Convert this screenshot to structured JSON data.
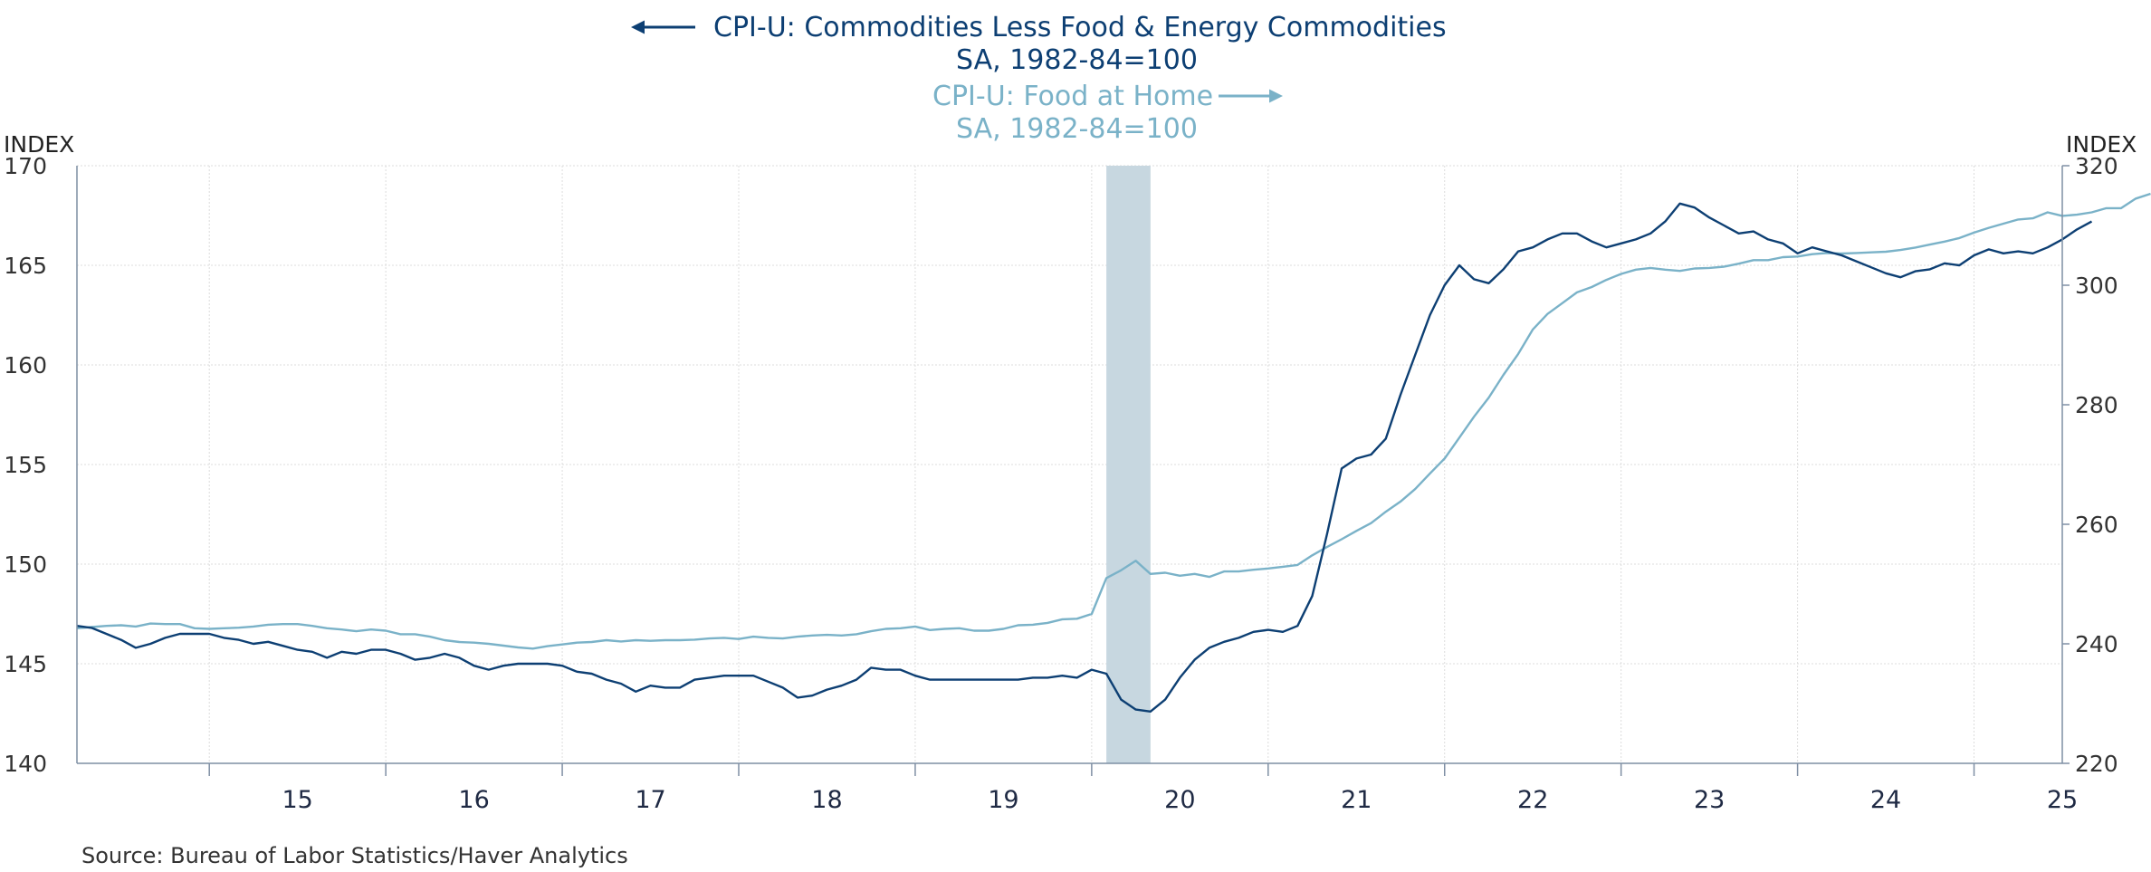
{
  "chart_data": {
    "type": "line",
    "series": [
      {
        "name": "CPI-U: Commodities Less Food & Energy Commodities",
        "subtitle": "SA, 1982-84=100",
        "axis": "left",
        "color": "#0d3f73",
        "start": "2014-04",
        "values": [
          146.9,
          146.8,
          146.5,
          146.2,
          145.8,
          146.0,
          146.3,
          146.5,
          146.5,
          146.5,
          146.3,
          146.2,
          146.0,
          146.1,
          145.9,
          145.7,
          145.6,
          145.3,
          145.6,
          145.5,
          145.7,
          145.7,
          145.5,
          145.2,
          145.3,
          145.5,
          145.3,
          144.9,
          144.7,
          144.9,
          145.0,
          145.0,
          145.0,
          144.9,
          144.6,
          144.5,
          144.2,
          144.0,
          143.6,
          143.9,
          143.8,
          143.8,
          144.2,
          144.3,
          144.4,
          144.4,
          144.4,
          144.1,
          143.8,
          143.3,
          143.4,
          143.7,
          143.9,
          144.2,
          144.8,
          144.7,
          144.7,
          144.4,
          144.2,
          144.2,
          144.2,
          144.2,
          144.2,
          144.2,
          144.2,
          144.3,
          144.3,
          144.4,
          144.3,
          144.7,
          144.5,
          143.2,
          142.7,
          142.6,
          143.2,
          144.3,
          145.2,
          145.8,
          146.1,
          146.3,
          146.6,
          146.7,
          146.6,
          146.9,
          148.4,
          151.5,
          154.8,
          155.3,
          155.5,
          156.3,
          158.5,
          160.5,
          162.5,
          164.0,
          165.0,
          164.3,
          164.1,
          164.8,
          165.7,
          165.9,
          166.3,
          166.6,
          166.6,
          166.2,
          165.9,
          166.1,
          166.3,
          166.6,
          167.2,
          168.1,
          167.9,
          167.4,
          167.0,
          166.6,
          166.7,
          166.3,
          166.1,
          165.6,
          165.9,
          165.7,
          165.5,
          165.2,
          164.9,
          164.6,
          164.4,
          164.7,
          164.8,
          165.1,
          165.0,
          165.5,
          165.8,
          165.6,
          165.7,
          165.6,
          165.9,
          166.3,
          166.8,
          167.2
        ]
      },
      {
        "name": "CPI-U: Food at Home",
        "subtitle": "SA, 1982-84=100",
        "axis": "right",
        "color": "#7ab2c8",
        "start": "2014-04",
        "values": [
          242.6,
          242.8,
          243.0,
          243.1,
          242.9,
          243.4,
          243.3,
          243.3,
          242.6,
          242.5,
          242.6,
          242.7,
          242.9,
          243.2,
          243.3,
          243.3,
          243.0,
          242.6,
          242.4,
          242.1,
          242.4,
          242.2,
          241.6,
          241.6,
          241.2,
          240.6,
          240.3,
          240.2,
          240.0,
          239.7,
          239.4,
          239.2,
          239.6,
          239.9,
          240.2,
          240.3,
          240.6,
          240.4,
          240.6,
          240.5,
          240.6,
          240.6,
          240.7,
          240.9,
          241.0,
          240.8,
          241.2,
          241.0,
          240.9,
          241.2,
          241.4,
          241.5,
          241.4,
          241.6,
          242.1,
          242.5,
          242.6,
          242.9,
          242.3,
          242.5,
          242.6,
          242.2,
          242.2,
          242.5,
          243.1,
          243.2,
          243.5,
          244.1,
          244.2,
          245.0,
          251.0,
          252.3,
          253.9,
          251.7,
          251.9,
          251.4,
          251.7,
          251.2,
          252.1,
          252.1,
          252.4,
          252.6,
          252.9,
          253.2,
          254.8,
          256.2,
          257.5,
          258.9,
          260.2,
          262.1,
          263.8,
          265.9,
          268.5,
          271.0,
          274.5,
          278.0,
          281.2,
          285.0,
          288.5,
          292.6,
          295.2,
          297.0,
          298.8,
          299.7,
          300.9,
          301.9,
          302.6,
          302.9,
          302.6,
          302.4,
          302.8,
          302.9,
          303.1,
          303.6,
          304.2,
          304.2,
          304.7,
          304.8,
          305.2,
          305.4,
          305.3,
          305.4,
          305.5,
          305.6,
          305.9,
          306.3,
          306.8,
          307.3,
          307.9,
          308.8,
          309.6,
          310.3,
          311.0,
          311.2,
          312.2,
          311.6,
          311.8,
          312.2,
          312.9,
          312.9,
          314.5,
          315.3
        ]
      }
    ],
    "x_ticks": [
      "15",
      "16",
      "17",
      "18",
      "19",
      "20",
      "21",
      "22",
      "23",
      "24",
      "25"
    ],
    "x_range": [
      "2014-04",
      "2025-07"
    ],
    "left_axis": {
      "label": "INDEX",
      "ticks": [
        140,
        145,
        150,
        155,
        160,
        165,
        170
      ],
      "ylim": [
        140,
        170
      ]
    },
    "right_axis": {
      "label": "INDEX",
      "ticks": [
        220,
        240,
        260,
        280,
        300,
        320
      ],
      "ylim": [
        220,
        320
      ]
    },
    "recession": {
      "start": "2020-02",
      "end": "2020-04",
      "color": "#c7d7e0"
    },
    "grid": true,
    "source": "Source:  Bureau of Labor Statistics/Haver Analytics"
  }
}
